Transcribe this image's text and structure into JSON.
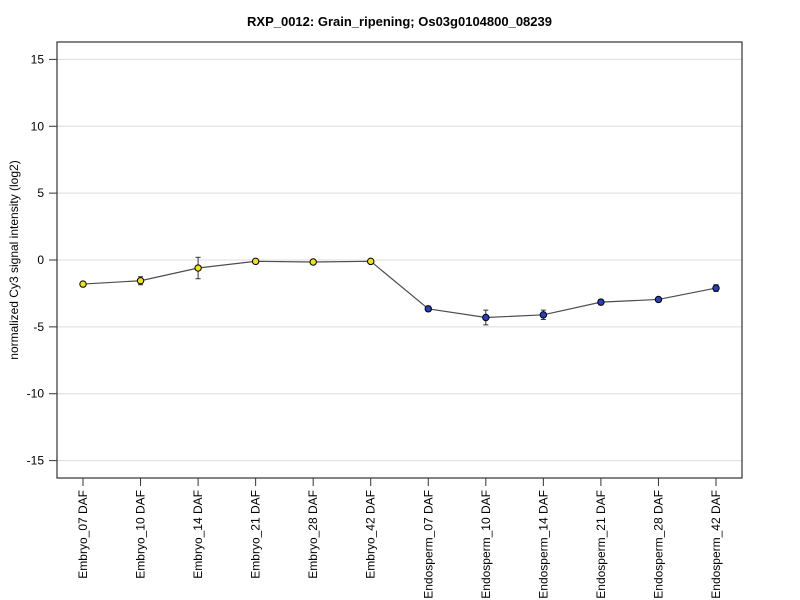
{
  "page": {
    "background_color": "#ffffff"
  },
  "chart_data": {
    "type": "line",
    "title": "RXP_0012: Grain_ripening; Os03g0104800_08239",
    "ylabel": "normalized Cy3 signal intensity (log2)",
    "xlabel": "",
    "ylim": [
      -16.3,
      16.3
    ],
    "yticks": [
      -15,
      -10,
      -5,
      0,
      5,
      10,
      15
    ],
    "grid": "horizontal-only",
    "legend_position": "none",
    "categories": [
      "Embryo_07 DAF",
      "Embryo_10 DAF",
      "Embryo_14 DAF",
      "Embryo_21 DAF",
      "Embryo_28 DAF",
      "Embryo_42 DAF",
      "Endosperm_07 DAF",
      "Endosperm_10 DAF",
      "Endosperm_14 DAF",
      "Endosperm_21 DAF",
      "Endosperm_28 DAF",
      "Endosperm_42 DAF"
    ],
    "series": [
      {
        "name": "normalized Cy3 signal intensity (log2)",
        "values": [
          -1.8,
          -1.55,
          -0.6,
          -0.1,
          -0.15,
          -0.1,
          -3.65,
          -4.3,
          -4.1,
          -3.15,
          -2.95,
          -2.1
        ],
        "errors": [
          0.15,
          0.3,
          0.8,
          0.1,
          0.1,
          0.1,
          0.2,
          0.55,
          0.35,
          0.2,
          0.1,
          0.25
        ],
        "marker_colors": [
          "#f2e30e",
          "#f2e30e",
          "#f2e30e",
          "#f2e30e",
          "#f2e30e",
          "#f2e30e",
          "#2640c2",
          "#2640c2",
          "#2640c2",
          "#2640c2",
          "#2640c2",
          "#2640c2"
        ]
      }
    ],
    "groups": [
      {
        "name": "Embryo",
        "marker_color": "#f2e30e"
      },
      {
        "name": "Endosperm",
        "marker_color": "#2640c2"
      }
    ],
    "colors": {
      "line": "#4d4d4d",
      "grid": "#dcdcdc",
      "axis_box": "#333333",
      "tick": "#333333",
      "error_bar": "#333333",
      "marker_stroke": "#000000",
      "text": "#000000"
    }
  }
}
